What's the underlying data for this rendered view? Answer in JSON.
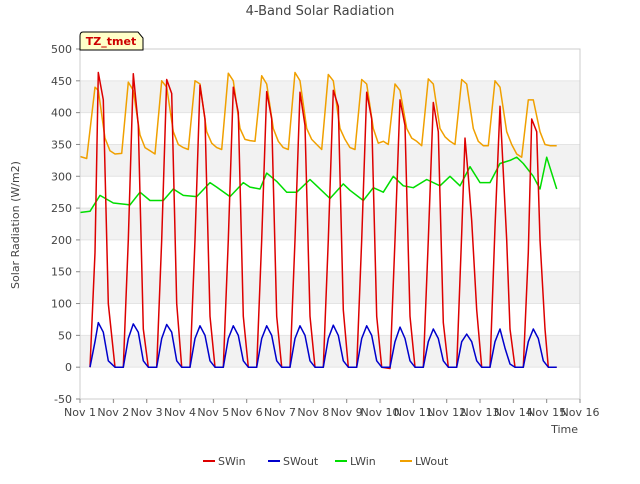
{
  "chart_data": {
    "type": "line",
    "title": "4-Band Solar Radiation",
    "xlabel": "Time",
    "ylabel": "Solar Radiation (W/m2)",
    "annotation": "TZ_tmet",
    "xlim": [
      1,
      16
    ],
    "ylim": [
      -50,
      500
    ],
    "x_ticks": [
      {
        "value": 1,
        "label": "Nov 1"
      },
      {
        "value": 2,
        "label": "Nov 2"
      },
      {
        "value": 3,
        "label": "Nov 3"
      },
      {
        "value": 4,
        "label": "Nov 4"
      },
      {
        "value": 5,
        "label": "Nov 5"
      },
      {
        "value": 6,
        "label": "Nov 6"
      },
      {
        "value": 7,
        "label": "Nov 7"
      },
      {
        "value": 8,
        "label": "Nov 8"
      },
      {
        "value": 9,
        "label": "Nov 9"
      },
      {
        "value": 10,
        "label": "Nov 10"
      },
      {
        "value": 11,
        "label": "Nov 11"
      },
      {
        "value": 12,
        "label": "Nov 12"
      },
      {
        "value": 13,
        "label": "Nov 13"
      },
      {
        "value": 14,
        "label": "Nov 14"
      },
      {
        "value": 15,
        "label": "Nov 15"
      },
      {
        "value": 16,
        "label": "Nov 16"
      }
    ],
    "y_ticks": [
      -50,
      0,
      50,
      100,
      150,
      200,
      250,
      300,
      350,
      400,
      450,
      500
    ],
    "grid": "horizontal bands",
    "legend_position": "bottom",
    "series": [
      {
        "name": "SWin",
        "color": "#dd0000",
        "x": [
          1.3,
          1.45,
          1.55,
          1.7,
          1.85,
          2.05,
          2.3,
          2.45,
          2.6,
          2.75,
          2.9,
          3.05,
          3.3,
          3.45,
          3.6,
          3.75,
          3.9,
          4.05,
          4.3,
          4.45,
          4.6,
          4.75,
          4.9,
          5.05,
          5.3,
          5.45,
          5.6,
          5.75,
          5.9,
          6.05,
          6.3,
          6.45,
          6.6,
          6.75,
          6.9,
          7.05,
          7.3,
          7.45,
          7.6,
          7.75,
          7.9,
          8.05,
          8.3,
          8.45,
          8.6,
          8.75,
          8.9,
          9.05,
          9.3,
          9.45,
          9.6,
          9.75,
          9.9,
          10.05,
          10.3,
          10.45,
          10.6,
          10.75,
          10.9,
          11.05,
          11.3,
          11.45,
          11.6,
          11.75,
          11.9,
          12.05,
          12.3,
          12.45,
          12.55,
          12.65,
          12.75,
          12.9,
          13.05,
          13.3,
          13.45,
          13.6,
          13.8,
          13.9,
          14.05,
          14.3,
          14.45,
          14.55,
          14.7,
          14.8,
          14.95,
          15.05,
          15.3
        ],
        "y": [
          0,
          180,
          463,
          420,
          100,
          0,
          0,
          200,
          461,
          380,
          60,
          0,
          0,
          200,
          452,
          430,
          100,
          0,
          0,
          200,
          443,
          390,
          80,
          0,
          0,
          200,
          440,
          400,
          80,
          0,
          0,
          200,
          433,
          390,
          80,
          0,
          0,
          200,
          432,
          380,
          80,
          0,
          0,
          200,
          435,
          410,
          90,
          0,
          0,
          200,
          432,
          390,
          80,
          0,
          -2,
          200,
          420,
          380,
          80,
          0,
          0,
          200,
          416,
          370,
          70,
          0,
          0,
          210,
          360,
          300,
          230,
          90,
          0,
          0,
          220,
          410,
          200,
          60,
          0,
          0,
          180,
          390,
          370,
          200,
          60,
          0,
          0
        ]
      },
      {
        "name": "SWout",
        "color": "#0000cc",
        "x": [
          1.3,
          1.45,
          1.55,
          1.7,
          1.85,
          2.05,
          2.3,
          2.45,
          2.6,
          2.75,
          2.9,
          3.05,
          3.3,
          3.45,
          3.6,
          3.75,
          3.9,
          4.05,
          4.3,
          4.45,
          4.6,
          4.75,
          4.9,
          5.05,
          5.3,
          5.45,
          5.6,
          5.75,
          5.9,
          6.05,
          6.3,
          6.45,
          6.6,
          6.75,
          6.9,
          7.05,
          7.3,
          7.45,
          7.6,
          7.75,
          7.9,
          8.05,
          8.3,
          8.45,
          8.6,
          8.75,
          8.9,
          9.05,
          9.3,
          9.45,
          9.6,
          9.75,
          9.9,
          10.05,
          10.3,
          10.45,
          10.6,
          10.75,
          10.9,
          11.05,
          11.3,
          11.45,
          11.6,
          11.75,
          11.9,
          12.05,
          12.3,
          12.45,
          12.6,
          12.75,
          12.9,
          13.05,
          13.3,
          13.45,
          13.6,
          13.75,
          13.9,
          14.05,
          14.3,
          14.45,
          14.6,
          14.75,
          14.9,
          15.05,
          15.3
        ],
        "y": [
          0,
          40,
          70,
          55,
          10,
          0,
          0,
          45,
          68,
          55,
          10,
          0,
          0,
          45,
          67,
          55,
          10,
          0,
          0,
          45,
          65,
          50,
          10,
          0,
          0,
          45,
          65,
          50,
          10,
          0,
          0,
          45,
          65,
          50,
          10,
          0,
          0,
          45,
          65,
          50,
          10,
          0,
          0,
          45,
          66,
          50,
          10,
          0,
          0,
          45,
          65,
          50,
          10,
          0,
          0,
          40,
          63,
          45,
          10,
          0,
          0,
          40,
          60,
          45,
          10,
          0,
          0,
          40,
          52,
          40,
          10,
          0,
          0,
          40,
          60,
          30,
          5,
          0,
          0,
          40,
          60,
          45,
          10,
          0,
          0
        ]
      },
      {
        "name": "LWin",
        "color": "#00dd00",
        "x": [
          1.0,
          1.3,
          1.6,
          2.0,
          2.5,
          2.8,
          3.1,
          3.5,
          3.8,
          4.1,
          4.5,
          4.9,
          5.1,
          5.5,
          5.9,
          6.1,
          6.4,
          6.6,
          6.9,
          7.2,
          7.5,
          7.9,
          8.1,
          8.5,
          8.9,
          9.1,
          9.5,
          9.8,
          10.1,
          10.4,
          10.7,
          11.0,
          11.4,
          11.8,
          12.1,
          12.4,
          12.7,
          13.0,
          13.3,
          13.6,
          13.9,
          14.1,
          14.3,
          14.6,
          14.8,
          15.0,
          15.3
        ],
        "y": [
          243,
          245,
          270,
          258,
          255,
          275,
          262,
          262,
          280,
          270,
          268,
          290,
          283,
          268,
          290,
          283,
          280,
          305,
          292,
          275,
          275,
          295,
          285,
          265,
          288,
          278,
          262,
          282,
          275,
          300,
          285,
          282,
          295,
          285,
          300,
          285,
          315,
          290,
          290,
          320,
          325,
          330,
          320,
          300,
          280,
          330,
          280
        ]
      },
      {
        "name": "LWout",
        "color": "#f0a000",
        "x": [
          1.0,
          1.2,
          1.45,
          1.55,
          1.75,
          1.9,
          2.05,
          2.25,
          2.45,
          2.6,
          2.8,
          2.95,
          3.1,
          3.25,
          3.45,
          3.6,
          3.8,
          3.95,
          4.1,
          4.25,
          4.45,
          4.6,
          4.8,
          4.95,
          5.1,
          5.25,
          5.45,
          5.6,
          5.8,
          5.95,
          6.1,
          6.25,
          6.45,
          6.6,
          6.8,
          6.95,
          7.1,
          7.25,
          7.45,
          7.6,
          7.8,
          7.95,
          8.1,
          8.25,
          8.45,
          8.6,
          8.8,
          8.95,
          9.1,
          9.25,
          9.45,
          9.6,
          9.8,
          9.95,
          10.1,
          10.25,
          10.45,
          10.6,
          10.8,
          10.95,
          11.1,
          11.25,
          11.45,
          11.6,
          11.8,
          11.95,
          12.1,
          12.25,
          12.45,
          12.6,
          12.8,
          12.95,
          13.1,
          13.25,
          13.45,
          13.6,
          13.8,
          13.95,
          14.1,
          14.25,
          14.45,
          14.6,
          14.8,
          14.95,
          15.1,
          15.3
        ],
        "y": [
          331,
          328,
          440,
          435,
          360,
          340,
          335,
          336,
          448,
          435,
          365,
          345,
          340,
          335,
          450,
          440,
          370,
          350,
          345,
          342,
          450,
          445,
          370,
          352,
          345,
          342,
          462,
          450,
          375,
          358,
          356,
          355,
          458,
          445,
          375,
          355,
          345,
          342,
          463,
          450,
          375,
          358,
          350,
          342,
          460,
          450,
          375,
          358,
          345,
          342,
          452,
          445,
          375,
          352,
          355,
          350,
          445,
          435,
          375,
          360,
          355,
          348,
          453,
          445,
          375,
          362,
          355,
          350,
          452,
          445,
          375,
          355,
          348,
          348,
          450,
          440,
          370,
          350,
          335,
          330,
          420,
          420,
          370,
          350,
          348,
          348
        ]
      }
    ]
  }
}
